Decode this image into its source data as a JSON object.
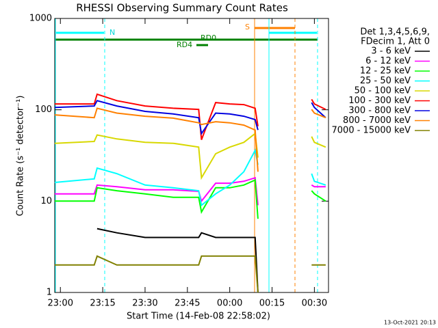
{
  "chart_data": {
    "type": "line",
    "title": "RHESSI Observing Summary Count Rates",
    "x_label": "Start Time (14-Feb-08 22:58:02)",
    "y_label": "Count Rate (s⁻¹ detector⁻¹)",
    "legend_header": [
      "Det 1,3,4,5,6,9,",
      "FDecim 1, Att 0"
    ],
    "footer": "13-Oct-2021 20:13",
    "annotations": [
      "N",
      "S",
      "RD0",
      "RD4"
    ],
    "y_scale": "log",
    "legend": "right",
    "xlim": [
      "22:58",
      "00:35"
    ],
    "xticks": [
      "23:00",
      "23:15",
      "23:30",
      "23:45",
      "00:00",
      "00:15",
      "00:30"
    ],
    "ylim": [
      1,
      1000
    ],
    "yticks": [
      1,
      10,
      100,
      1000
    ],
    "x": [
      "22:58",
      "23:12",
      "23:13",
      "23:20",
      "23:30",
      "23:40",
      "23:49",
      "23:50",
      "23:55",
      "00:00",
      "00:05",
      "00:09",
      "00:10",
      "00:20",
      "00:29",
      "00:30",
      "00:34"
    ],
    "series": [
      {
        "name": "3 - 6 keV",
        "color": "#000000",
        "values": [
          null,
          null,
          5,
          4.5,
          4,
          4,
          4,
          4.5,
          4,
          4,
          4,
          4,
          1,
          null,
          null,
          null,
          null
        ]
      },
      {
        "name": "6 - 12 keV",
        "color": "#ff00ff",
        "values": [
          12,
          12,
          15,
          14.4,
          13.3,
          13.3,
          12.8,
          10,
          15.7,
          15.7,
          16.5,
          18,
          9,
          null,
          15,
          14.4,
          14.4
        ]
      },
      {
        "name": "12 - 25 keV",
        "color": "#00ff00",
        "values": [
          10,
          10,
          14,
          13,
          12,
          11,
          11,
          7.6,
          14,
          14,
          15,
          17,
          6.4,
          null,
          13,
          12,
          10
        ]
      },
      {
        "name": "25 - 50 keV",
        "color": "#00ffff",
        "values": [
          16,
          17.5,
          23,
          20,
          15,
          14,
          13,
          9,
          12,
          15,
          21,
          36,
          25,
          null,
          20,
          16.5,
          15
        ]
      },
      {
        "name": "50 - 100 keV",
        "color": "#d8d800",
        "values": [
          43,
          45,
          53,
          48,
          44,
          43,
          39,
          18,
          33,
          39,
          44,
          55,
          30,
          null,
          51,
          44,
          39
        ]
      },
      {
        "name": "100 - 300 keV",
        "color": "#ff0000",
        "values": [
          116,
          116,
          148,
          126,
          110,
          104,
          101,
          47,
          120,
          116,
          114,
          104,
          66,
          null,
          130,
          116,
          101
        ]
      },
      {
        "name": "300 - 800 keV",
        "color": "#0000e0",
        "values": [
          106,
          110,
          126,
          110,
          96,
          90,
          82,
          55,
          92,
          90,
          85,
          78,
          60,
          null,
          120,
          106,
          82
        ]
      },
      {
        "name": "800 - 7000 keV",
        "color": "#ff8000",
        "values": [
          88,
          82,
          104,
          92,
          85,
          81,
          72,
          69,
          74,
          72,
          68,
          60,
          21,
          null,
          101,
          92,
          82
        ]
      },
      {
        "name": "7000 - 15000 keV",
        "color": "#808000",
        "values": [
          2,
          2,
          2.5,
          2,
          2,
          2,
          2,
          2.5,
          2.5,
          2.5,
          2.5,
          2.5,
          1,
          null,
          2,
          2,
          2
        ]
      }
    ]
  }
}
